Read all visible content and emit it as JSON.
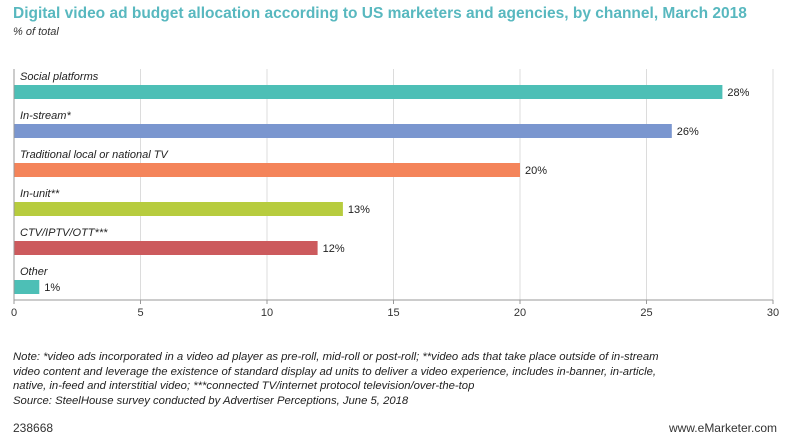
{
  "header": {
    "title": "Digital video ad budget allocation according to US marketers and agencies, by channel, March 2018",
    "subtitle": "% of total"
  },
  "chart_data": {
    "type": "bar",
    "orientation": "horizontal",
    "title": "Digital video ad budget allocation according to US marketers and agencies, by channel, March 2018",
    "xlabel": "",
    "ylabel": "",
    "xlim": [
      0,
      30
    ],
    "ticks": [
      0,
      5,
      10,
      15,
      20,
      25,
      30
    ],
    "grid": true,
    "categories": [
      "Social platforms",
      "In-stream*",
      "Traditional local or national TV",
      "In-unit**",
      "CTV/IPTV/OTT***",
      "Other"
    ],
    "values": [
      28,
      26,
      20,
      13,
      12,
      1
    ],
    "value_labels": [
      "28%",
      "26%",
      "20%",
      "13%",
      "12%",
      "1%"
    ],
    "colors": [
      "#4dbfb6",
      "#7a96cf",
      "#f4845a",
      "#b7cc3e",
      "#cc5a5d",
      "#4dbfb6"
    ]
  },
  "footer": {
    "note_lines": [
      "Note: *video ads incorporated in a video ad player as pre-roll, mid-roll or post-roll; **video ads that take place outside of in-stream",
      "video content and leverage the existence of standard display ad units to deliver a video experience, includes in-banner, in-article,",
      "native, in-feed and interstitial video; ***connected TV/internet protocol television/over-the-top",
      "Source: SteelHouse survey conducted by Advertiser Perceptions, June 5, 2018"
    ],
    "chart_id": "238668",
    "brand": "www.eMarketer.com"
  }
}
